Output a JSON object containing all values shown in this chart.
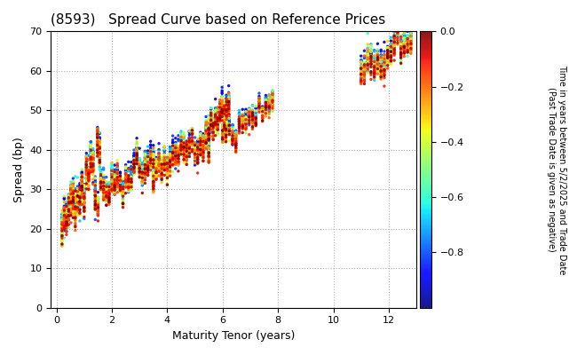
{
  "title": "(8593)   Spread Curve based on Reference Prices",
  "xlabel": "Maturity Tenor (years)",
  "ylabel": "Spread (bp)",
  "xlim": [
    -0.2,
    13
  ],
  "ylim": [
    0,
    70
  ],
  "xticks": [
    0,
    2,
    4,
    6,
    8,
    10,
    12
  ],
  "yticks": [
    0,
    10,
    20,
    30,
    40,
    50,
    60,
    70
  ],
  "colorbar_label_line1": "Time in years between 5/2/2025 and Trade Date",
  "colorbar_label_line2": "(Past Trade Date is given as negative)",
  "colorbar_vmin": -1.0,
  "colorbar_vmax": 0.0,
  "colorbar_ticks": [
    0.0,
    -0.2,
    -0.4,
    -0.6,
    -0.8
  ],
  "background_color": "#ffffff",
  "grid_color": "#b0b0b0",
  "marker_size": 6
}
